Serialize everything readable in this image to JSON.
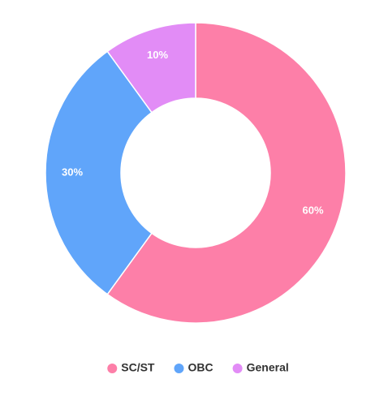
{
  "chart_data": {
    "type": "doughnut",
    "categories": [
      "SC/ST",
      "OBC",
      "General"
    ],
    "values": [
      60,
      30,
      10
    ],
    "value_labels": [
      "60%",
      "30%",
      "10%"
    ],
    "colors": [
      "#fd7fa8",
      "#60a5fa",
      "#e28cf6"
    ],
    "legend": "bottom"
  }
}
